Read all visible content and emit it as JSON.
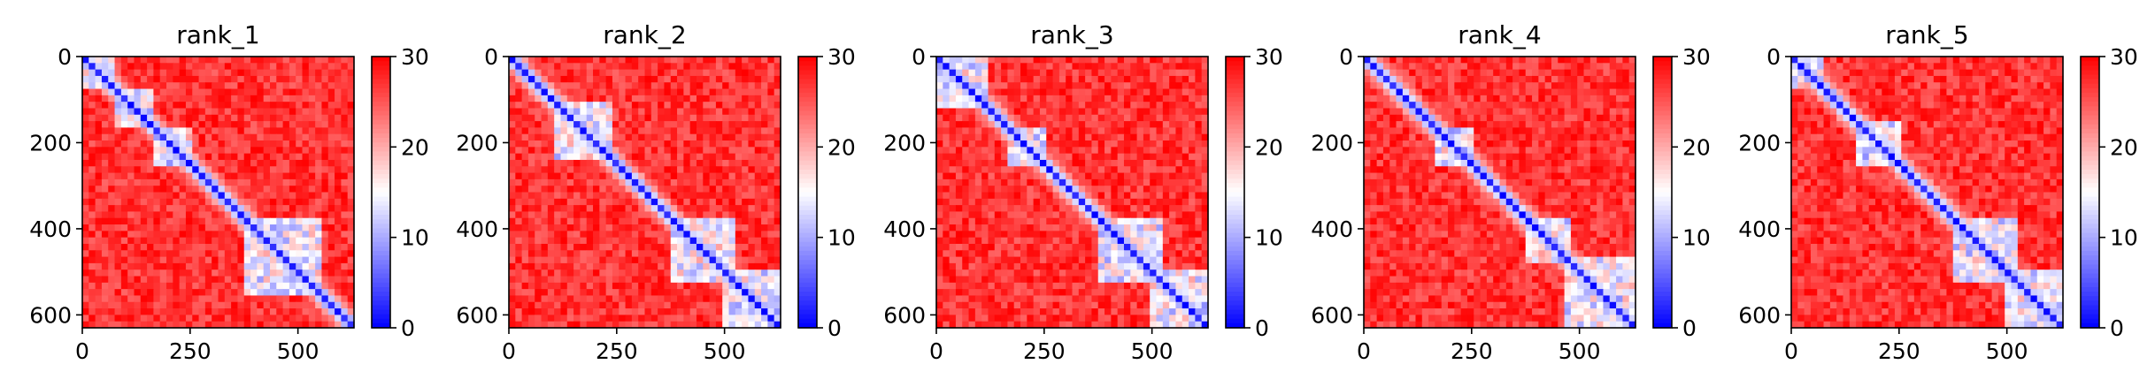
{
  "chart_data": [
    {
      "type": "heatmap",
      "title": "rank_1",
      "xlabel": "",
      "ylabel": "",
      "x_ticks": [
        "0",
        "250",
        "500"
      ],
      "y_ticks": [
        "0",
        "200",
        "400",
        "600"
      ],
      "xlim": [
        0,
        630
      ],
      "ylim": [
        630,
        0
      ],
      "colorbar": {
        "ticks": [
          "0",
          "10",
          "20",
          "30"
        ],
        "range": [
          0,
          30
        ],
        "colormap": "bwr"
      },
      "domains": [
        [
          0,
          70
        ],
        [
          70,
          160
        ],
        [
          160,
          250
        ],
        [
          380,
          560
        ]
      ],
      "grid": false
    },
    {
      "type": "heatmap",
      "title": "rank_2",
      "xlabel": "",
      "ylabel": "",
      "x_ticks": [
        "0",
        "250",
        "500"
      ],
      "y_ticks": [
        "0",
        "200",
        "400",
        "600"
      ],
      "xlim": [
        0,
        630
      ],
      "ylim": [
        630,
        0
      ],
      "colorbar": {
        "ticks": [
          "0",
          "10",
          "20",
          "30"
        ],
        "range": [
          0,
          30
        ],
        "colormap": "bwr"
      },
      "domains": [
        [
          110,
          240
        ],
        [
          380,
          520
        ],
        [
          500,
          630
        ]
      ],
      "grid": false
    },
    {
      "type": "heatmap",
      "title": "rank_3",
      "xlabel": "",
      "ylabel": "",
      "x_ticks": [
        "0",
        "250",
        "500"
      ],
      "y_ticks": [
        "0",
        "200",
        "400",
        "600"
      ],
      "xlim": [
        0,
        630
      ],
      "ylim": [
        630,
        0
      ],
      "colorbar": {
        "ticks": [
          "0",
          "10",
          "20",
          "30"
        ],
        "range": [
          0,
          30
        ],
        "colormap": "bwr"
      },
      "domains": [
        [
          0,
          120
        ],
        [
          160,
          250
        ],
        [
          380,
          520
        ],
        [
          500,
          630
        ]
      ],
      "grid": false
    },
    {
      "type": "heatmap",
      "title": "rank_4",
      "xlabel": "",
      "ylabel": "",
      "x_ticks": [
        "0",
        "250",
        "500"
      ],
      "y_ticks": [
        "0",
        "200",
        "400",
        "600"
      ],
      "xlim": [
        0,
        630
      ],
      "ylim": [
        630,
        0
      ],
      "colorbar": {
        "ticks": [
          "0",
          "10",
          "20",
          "30"
        ],
        "range": [
          0,
          30
        ],
        "colormap": "bwr"
      },
      "domains": [
        [
          170,
          250
        ],
        [
          380,
          480
        ],
        [
          460,
          630
        ]
      ],
      "grid": false
    },
    {
      "type": "heatmap",
      "title": "rank_5",
      "xlabel": "",
      "ylabel": "",
      "x_ticks": [
        "0",
        "250",
        "500"
      ],
      "y_ticks": [
        "0",
        "200",
        "400",
        "600"
      ],
      "xlim": [
        0,
        630
      ],
      "ylim": [
        630,
        0
      ],
      "colorbar": {
        "ticks": [
          "0",
          "10",
          "20",
          "30"
        ],
        "range": [
          0,
          30
        ],
        "colormap": "bwr"
      },
      "domains": [
        [
          0,
          80
        ],
        [
          150,
          260
        ],
        [
          380,
          520
        ],
        [
          500,
          630
        ]
      ],
      "grid": false
    }
  ],
  "colors": {
    "high": "#ff0000",
    "mid": "#ffffff",
    "low": "#0000ff"
  }
}
